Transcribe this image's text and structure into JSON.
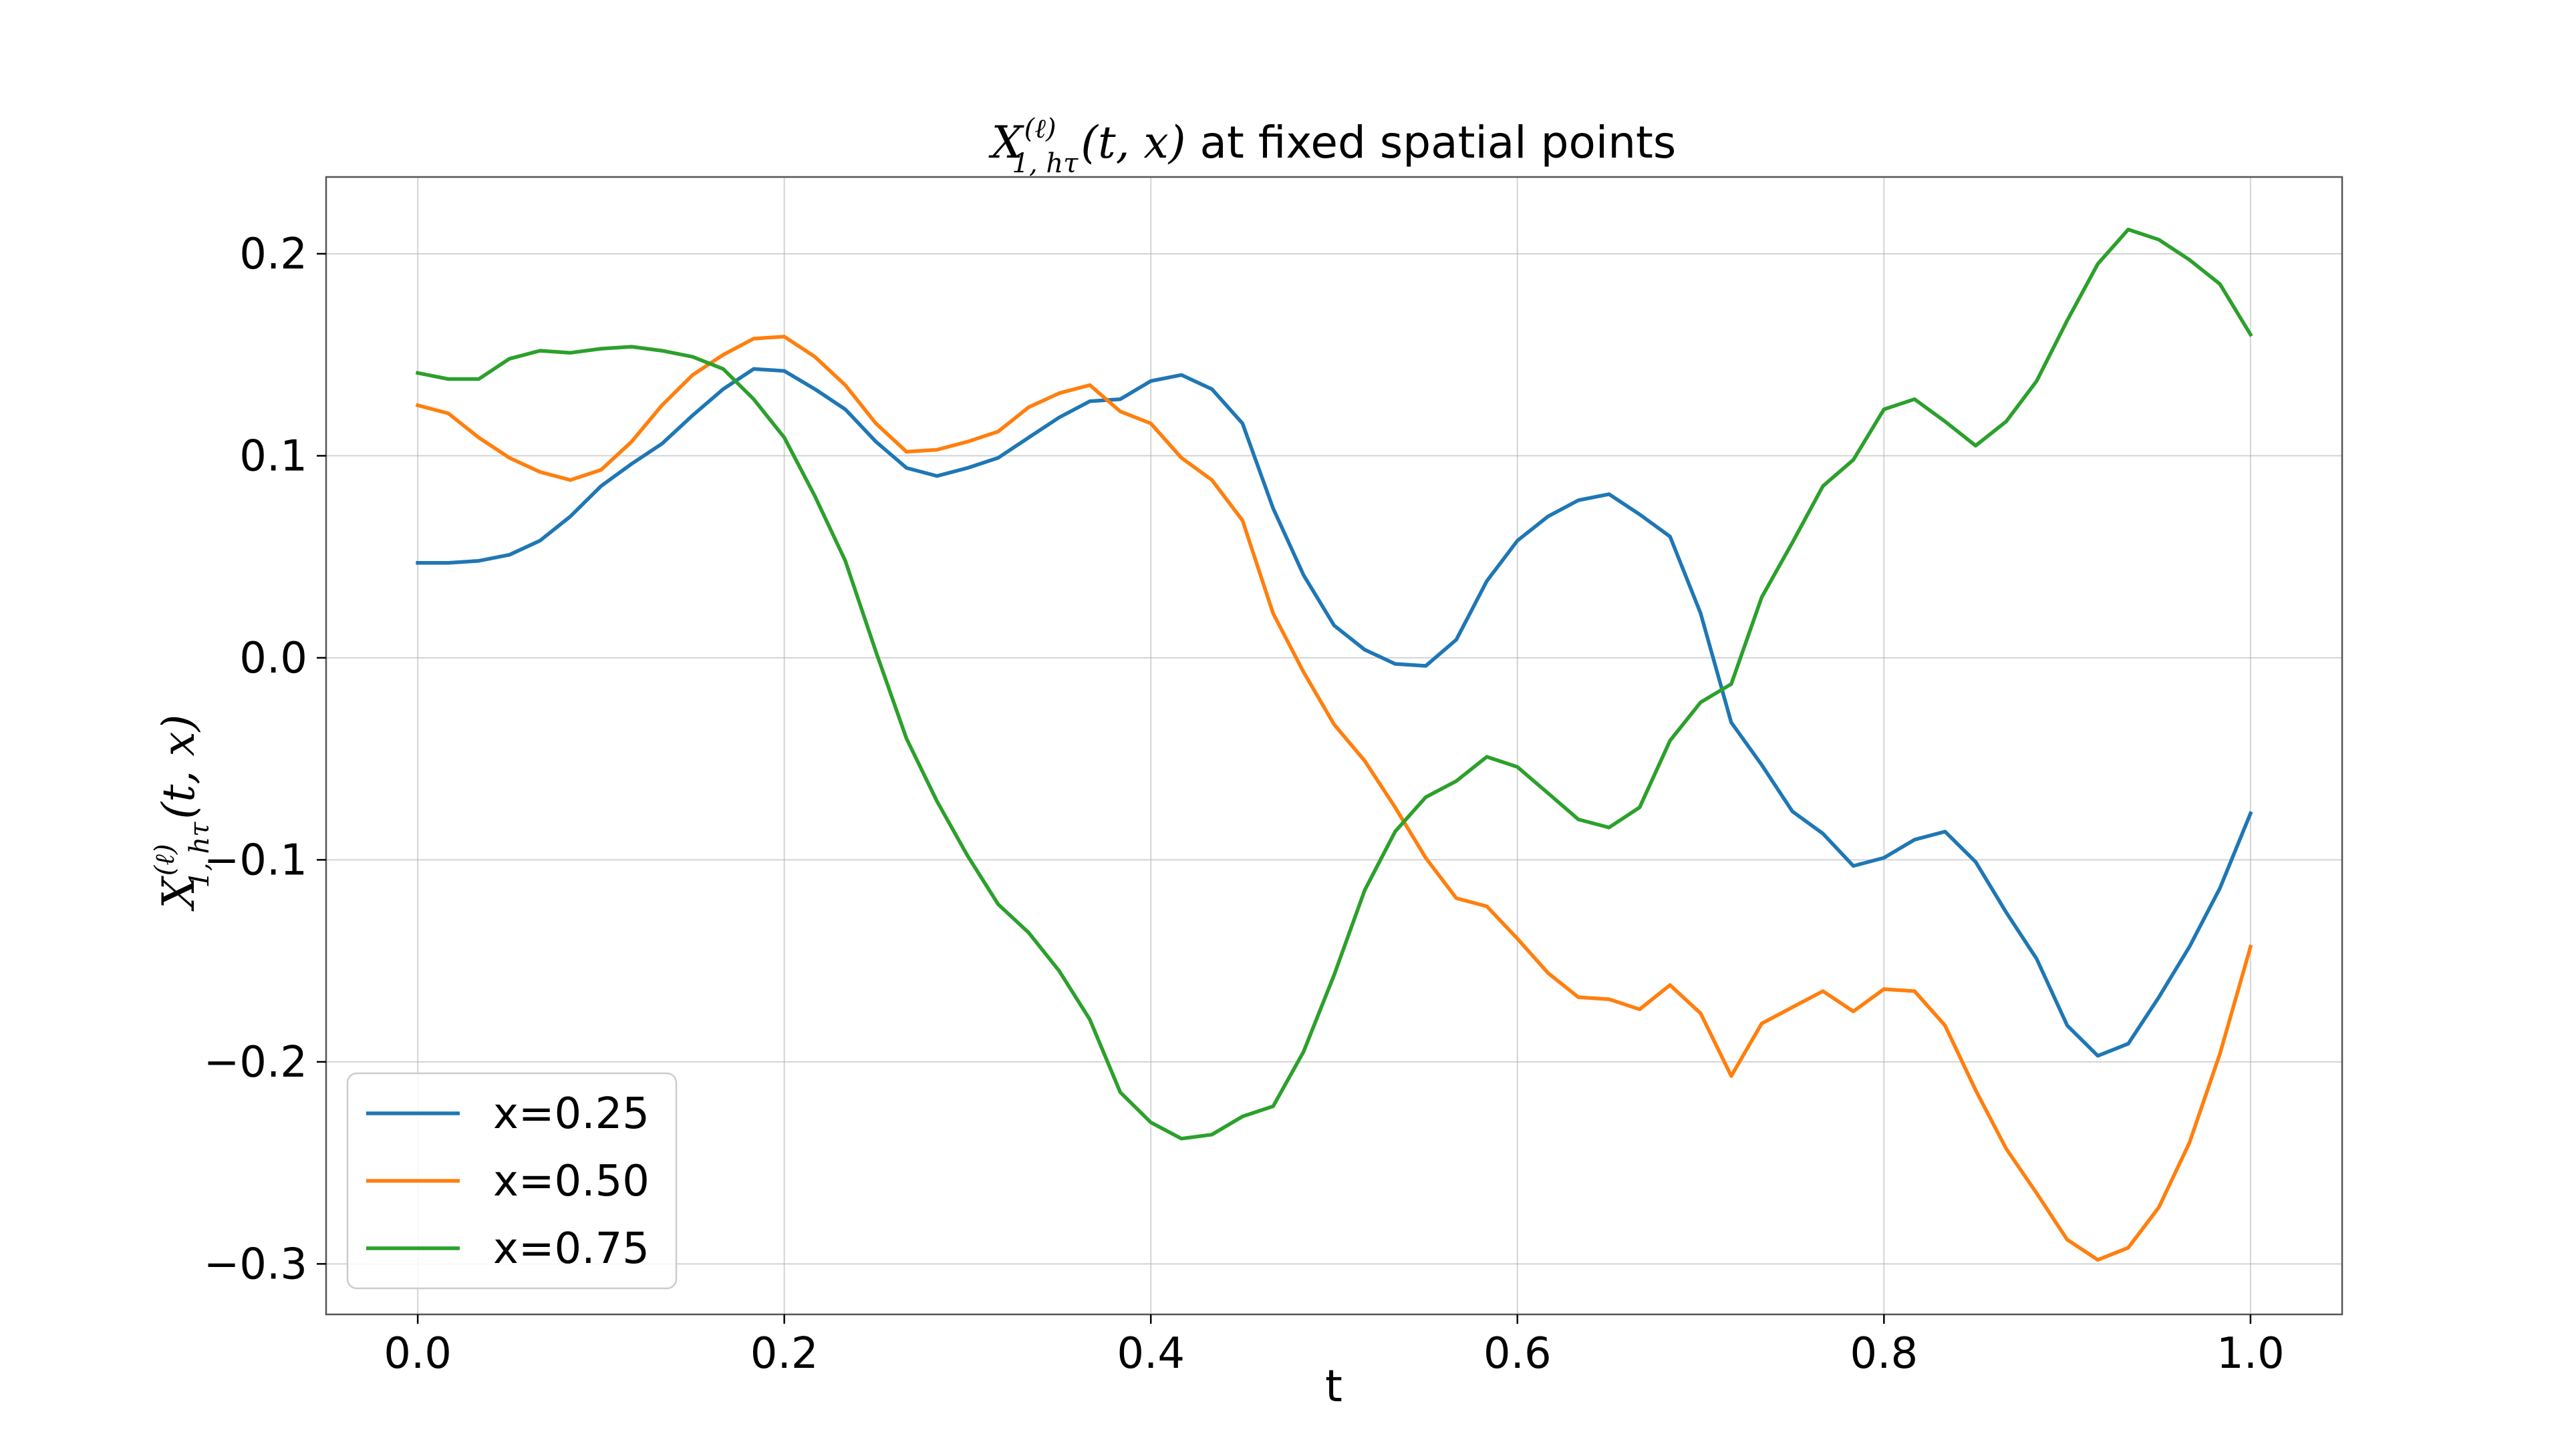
{
  "chart_data": {
    "type": "line",
    "title": "X_{1,hτ}^{(ℓ)}(t,x) at fixed spatial points",
    "title_parts": {
      "symbol": "X",
      "sup": "(ℓ)",
      "sub": "1, hτ",
      "args": "(t, x)",
      "text": " at fixed spatial points"
    },
    "xlabel": "t",
    "ylabel": "X_{1,hτ}^{(ℓ)}(t,x)",
    "ylabel_parts": {
      "symbol": "X",
      "sup": "(ℓ)",
      "sub": "1, hτ",
      "args": "(t, x)"
    },
    "xlim": [
      -0.05,
      1.05
    ],
    "ylim": [
      -0.325,
      0.238
    ],
    "xticks": [
      0.0,
      0.2,
      0.4,
      0.6,
      0.8,
      1.0
    ],
    "xtick_labels": [
      "0.0",
      "0.2",
      "0.4",
      "0.6",
      "0.8",
      "1.0"
    ],
    "yticks": [
      -0.3,
      -0.2,
      -0.1,
      0.0,
      0.1,
      0.2
    ],
    "ytick_labels": [
      "−0.3",
      "−0.2",
      "−0.1",
      "0.0",
      "0.1",
      "0.2"
    ],
    "grid": true,
    "legend_position": "lower-left",
    "x": [
      0.0,
      0.0167,
      0.0333,
      0.05,
      0.0667,
      0.0833,
      0.1,
      0.1167,
      0.1333,
      0.15,
      0.1667,
      0.1833,
      0.2,
      0.2167,
      0.2333,
      0.25,
      0.2667,
      0.2833,
      0.3,
      0.3167,
      0.3333,
      0.35,
      0.3667,
      0.3833,
      0.4,
      0.4167,
      0.4333,
      0.45,
      0.4667,
      0.4833,
      0.5,
      0.5167,
      0.5333,
      0.55,
      0.5667,
      0.5833,
      0.6,
      0.6167,
      0.6333,
      0.65,
      0.6667,
      0.6833,
      0.7,
      0.7167,
      0.7333,
      0.75,
      0.7667,
      0.7833,
      0.8,
      0.8167,
      0.8333,
      0.85,
      0.8667,
      0.8833,
      0.9,
      0.9167,
      0.9333,
      0.95,
      0.9667,
      0.9833,
      1.0
    ],
    "series": [
      {
        "name": "x=0.25",
        "color": "#1f77b4",
        "values": [
          0.047,
          0.047,
          0.048,
          0.051,
          0.058,
          0.07,
          0.085,
          0.096,
          0.106,
          0.12,
          0.133,
          0.143,
          0.142,
          0.133,
          0.123,
          0.107,
          0.094,
          0.09,
          0.094,
          0.099,
          0.109,
          0.119,
          0.127,
          0.128,
          0.137,
          0.14,
          0.133,
          0.116,
          0.074,
          0.041,
          0.016,
          0.004,
          -0.003,
          -0.004,
          0.009,
          0.038,
          0.058,
          0.07,
          0.078,
          0.081,
          0.071,
          0.06,
          0.022,
          -0.032,
          -0.053,
          -0.076,
          -0.087,
          -0.103,
          -0.099,
          -0.09,
          -0.086,
          -0.101,
          -0.126,
          -0.149,
          -0.182,
          -0.197,
          -0.191,
          -0.168,
          -0.143,
          -0.114,
          -0.077
        ]
      },
      {
        "name": "x=0.50",
        "color": "#ff7f0e",
        "values": [
          0.125,
          0.121,
          0.109,
          0.099,
          0.092,
          0.088,
          0.093,
          0.107,
          0.125,
          0.14,
          0.15,
          0.158,
          0.159,
          0.149,
          0.135,
          0.116,
          0.102,
          0.103,
          0.107,
          0.112,
          0.124,
          0.131,
          0.135,
          0.122,
          0.116,
          0.099,
          0.088,
          0.068,
          0.022,
          -0.007,
          -0.033,
          -0.051,
          -0.074,
          -0.099,
          -0.119,
          -0.123,
          -0.139,
          -0.156,
          -0.168,
          -0.169,
          -0.174,
          -0.162,
          -0.176,
          -0.207,
          -0.181,
          -0.173,
          -0.165,
          -0.175,
          -0.164,
          -0.165,
          -0.182,
          -0.214,
          -0.243,
          -0.265,
          -0.288,
          -0.298,
          -0.292,
          -0.272,
          -0.24,
          -0.196,
          -0.143
        ]
      },
      {
        "name": "x=0.75",
        "color": "#2ca02c",
        "values": [
          0.141,
          0.138,
          0.138,
          0.148,
          0.152,
          0.151,
          0.153,
          0.154,
          0.152,
          0.149,
          0.143,
          0.128,
          0.109,
          0.08,
          0.048,
          0.003,
          -0.04,
          -0.071,
          -0.098,
          -0.122,
          -0.136,
          -0.155,
          -0.179,
          -0.215,
          -0.23,
          -0.238,
          -0.236,
          -0.227,
          -0.222,
          -0.195,
          -0.157,
          -0.115,
          -0.086,
          -0.069,
          -0.061,
          -0.049,
          -0.054,
          -0.067,
          -0.08,
          -0.084,
          -0.074,
          -0.041,
          -0.022,
          -0.013,
          0.03,
          0.057,
          0.085,
          0.098,
          0.123,
          0.128,
          0.117,
          0.105,
          0.117,
          0.137,
          0.167,
          0.195,
          0.212,
          0.207,
          0.197,
          0.185,
          0.16
        ]
      }
    ]
  }
}
